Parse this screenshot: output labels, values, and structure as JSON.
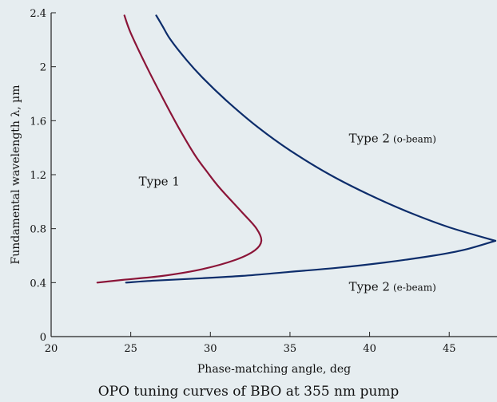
{
  "chart_data": {
    "type": "line",
    "title": "OPO tuning curves of BBO at 355 nm pump",
    "xlabel": "Phase-matching angle, deg",
    "ylabel": "Fundamental wavelength λ, µm",
    "xlim": [
      20,
      48
    ],
    "ylim": [
      0,
      2.4
    ],
    "xticks": [
      "20",
      "25",
      "30",
      "35",
      "40",
      "45"
    ],
    "yticks": [
      "0",
      "0.4",
      "0.8",
      "1.2",
      "1.6",
      "2",
      "2.4"
    ],
    "grid": false,
    "colors": {
      "type1": "#8b1538",
      "type2": "#0d2d6b"
    },
    "series": [
      {
        "name": "Type 1",
        "color": "#8b1538",
        "x": [
          22.9,
          24.5,
          27.0,
          29.5,
          31.6,
          32.8,
          33.2,
          32.9,
          32.0,
          30.6,
          29.8,
          29.0,
          28.0,
          27.0,
          26.0,
          25.0,
          24.6
        ],
        "y": [
          0.4,
          0.42,
          0.45,
          0.5,
          0.57,
          0.64,
          0.71,
          0.8,
          0.92,
          1.1,
          1.22,
          1.35,
          1.55,
          1.77,
          2.0,
          2.25,
          2.38
        ]
      },
      {
        "name": "Type 2 (o-beam)",
        "color": "#0d2d6b",
        "x": [
          47.9,
          45.0,
          42.5,
          40.0,
          37.5,
          35.0,
          33.0,
          31.0,
          29.5,
          28.5,
          27.5,
          27.0,
          26.6
        ],
        "y": [
          0.71,
          0.81,
          0.92,
          1.05,
          1.2,
          1.38,
          1.55,
          1.75,
          1.92,
          2.05,
          2.2,
          2.3,
          2.38
        ]
      },
      {
        "name": "Type 2 (e-beam)",
        "color": "#0d2d6b",
        "x": [
          24.7,
          26.5,
          29.0,
          32.0,
          35.0,
          38.0,
          41.0,
          44.0,
          46.0,
          47.9
        ],
        "y": [
          0.4,
          0.415,
          0.43,
          0.45,
          0.48,
          0.51,
          0.55,
          0.6,
          0.645,
          0.71
        ]
      }
    ],
    "annotations": [
      {
        "label": "Type 1",
        "x": 25.5,
        "y": 1.12
      },
      {
        "label": "Type 2",
        "sub": "(o-beam)",
        "x": 38.7,
        "y": 1.44
      },
      {
        "label": "Type 2",
        "sub": "(e-beam)",
        "x": 38.7,
        "y": 0.34
      }
    ]
  }
}
